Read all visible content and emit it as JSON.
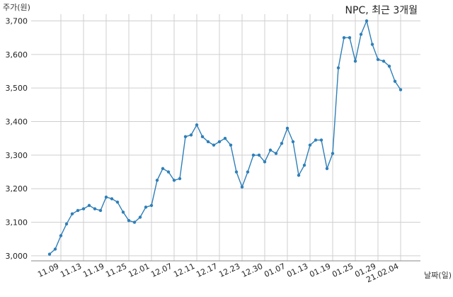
{
  "chart_data": {
    "type": "line",
    "title": "NPC, 최근 3개월",
    "ylabel": "주가(원)",
    "xlabel": "날짜(일)",
    "ylim": [
      2985,
      3720
    ],
    "yticks": [
      3000,
      3100,
      3200,
      3300,
      3400,
      3500,
      3600,
      3700
    ],
    "ytick_labels": [
      "3,000",
      "3,100",
      "3,200",
      "3,300",
      "3,400",
      "3,500",
      "3,600",
      "3,700"
    ],
    "xtick_labels": [
      "11.09",
      "11.13",
      "11.19",
      "11.25",
      "12.01",
      "12.07",
      "12.11",
      "12.17",
      "12.23",
      "12.30",
      "01.07",
      "01.13",
      "01.19",
      "01.25",
      "01.29",
      "21.02.04"
    ],
    "xtick_index": [
      2,
      6,
      10,
      14,
      18,
      22,
      26,
      30,
      34,
      38,
      42,
      46,
      50,
      54,
      58,
      62
    ],
    "grid": true,
    "color": "#2e7fb8",
    "series": [
      {
        "values": [
          3005,
          3020,
          3060,
          3095,
          3125,
          3135,
          3140,
          3150,
          3140,
          3135,
          3175,
          3170,
          3160,
          3130,
          3105,
          3100,
          3115,
          3145,
          3150,
          3225,
          3260,
          3250,
          3225,
          3230,
          3355,
          3360,
          3390,
          3355,
          3340,
          3330,
          3340,
          3350,
          3330,
          3250,
          3205,
          3250,
          3300,
          3300,
          3280,
          3315,
          3305,
          3335,
          3380,
          3340,
          3240,
          3270,
          3330,
          3345,
          3345,
          3260,
          3305,
          3560,
          3650,
          3650,
          3580,
          3660,
          3700,
          3630,
          3585,
          3580,
          3565,
          3520,
          3495
        ]
      }
    ]
  }
}
